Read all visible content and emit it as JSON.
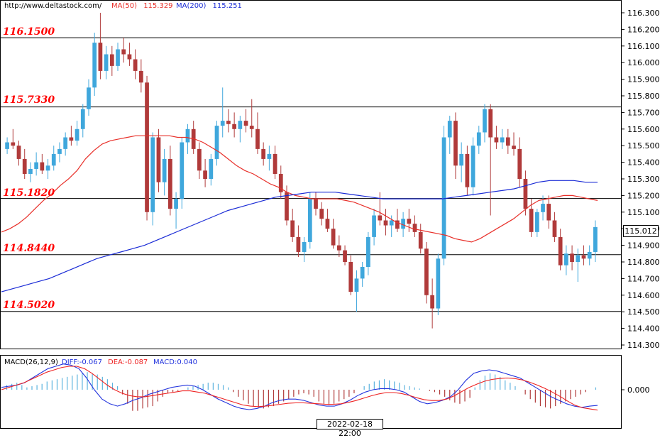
{
  "header": {
    "site": "http://www.deltastock.com/",
    "ma50_label": "MA(50)",
    "ma50_value": "115.329",
    "ma200_label": "MA(200)",
    "ma200_value": "115.251"
  },
  "macd_header": {
    "title": "MACD(26,12,9)",
    "diff": "DIFF:-0.067",
    "dea": "DEA:-0.087",
    "macd": "MACD:0.040"
  },
  "price_axis": {
    "ticks": [
      "116.300",
      "116.200",
      "116.100",
      "116.000",
      "115.900",
      "115.800",
      "115.700",
      "115.600",
      "115.500",
      "115.400",
      "115.300",
      "115.200",
      "115.100",
      "115.000",
      "114.900",
      "114.800",
      "114.700",
      "114.600",
      "114.500",
      "114.400",
      "114.300"
    ]
  },
  "macd_axis": {
    "zero_label": "0.000"
  },
  "current_price": "115.012",
  "time_label": "2022-02-18 22:00",
  "levels": [
    {
      "label": "116.1500",
      "value": 116.15
    },
    {
      "label": "115.7330",
      "value": 115.733
    },
    {
      "label": "115.1820",
      "value": 115.182
    },
    {
      "label": "114.8440",
      "value": 114.844
    },
    {
      "label": "114.5020",
      "value": 114.502
    }
  ],
  "colors": {
    "up": "#3fa7dc",
    "down": "#b03a3a",
    "ma50": "#e8302a",
    "ma200": "#1a2bd6",
    "level_text": "#ff0000",
    "macd_up": "#5bb3de",
    "macd_down": "#b03a3a",
    "diff": "#2233dd",
    "dea": "#ee2222"
  },
  "chart_data": {
    "type": "candlestick",
    "ylim": [
      114.25,
      116.33
    ],
    "candles": [
      [
        115.48,
        115.55,
        115.45,
        115.52
      ],
      [
        115.52,
        115.6,
        115.48,
        115.5
      ],
      [
        115.5,
        115.53,
        115.38,
        115.42
      ],
      [
        115.42,
        115.48,
        115.3,
        115.33
      ],
      [
        115.33,
        115.4,
        115.28,
        115.36
      ],
      [
        115.36,
        115.46,
        115.32,
        115.4
      ],
      [
        115.4,
        115.45,
        115.33,
        115.35
      ],
      [
        115.35,
        115.42,
        115.3,
        115.38
      ],
      [
        115.38,
        115.5,
        115.35,
        115.45
      ],
      [
        115.45,
        115.52,
        115.4,
        115.48
      ],
      [
        115.48,
        115.58,
        115.44,
        115.55
      ],
      [
        115.55,
        115.62,
        115.5,
        115.53
      ],
      [
        115.53,
        115.65,
        115.5,
        115.6
      ],
      [
        115.6,
        115.75,
        115.55,
        115.72
      ],
      [
        115.72,
        115.9,
        115.68,
        115.85
      ],
      [
        115.85,
        116.18,
        115.8,
        116.12
      ],
      [
        116.12,
        116.3,
        115.9,
        115.95
      ],
      [
        115.95,
        116.1,
        115.9,
        116.05
      ],
      [
        116.05,
        116.1,
        115.92,
        115.98
      ],
      [
        115.98,
        116.12,
        115.95,
        116.08
      ],
      [
        116.08,
        116.15,
        116.0,
        116.05
      ],
      [
        116.05,
        116.12,
        115.98,
        116.02
      ],
      [
        116.02,
        116.08,
        115.9,
        115.95
      ],
      [
        115.95,
        116.02,
        115.82,
        115.88
      ],
      [
        115.88,
        115.92,
        115.05,
        115.1
      ],
      [
        115.1,
        115.58,
        115.02,
        115.55
      ],
      [
        115.55,
        115.6,
        115.22,
        115.28
      ],
      [
        115.28,
        115.48,
        115.2,
        115.42
      ],
      [
        115.42,
        115.5,
        115.08,
        115.12
      ],
      [
        115.12,
        115.22,
        115.0,
        115.18
      ],
      [
        115.18,
        115.55,
        115.12,
        115.52
      ],
      [
        115.52,
        115.63,
        115.45,
        115.6
      ],
      [
        115.6,
        115.65,
        115.45,
        115.48
      ],
      [
        115.48,
        115.52,
        115.3,
        115.35
      ],
      [
        115.35,
        115.42,
        115.25,
        115.3
      ],
      [
        115.3,
        115.45,
        115.26,
        115.42
      ],
      [
        115.42,
        115.65,
        115.38,
        115.62
      ],
      [
        115.62,
        115.85,
        115.55,
        115.65
      ],
      [
        115.65,
        115.72,
        115.58,
        115.63
      ],
      [
        115.63,
        115.7,
        115.55,
        115.6
      ],
      [
        115.6,
        115.68,
        115.52,
        115.65
      ],
      [
        115.65,
        115.72,
        115.58,
        115.62
      ],
      [
        115.62,
        115.78,
        115.55,
        115.6
      ],
      [
        115.6,
        115.7,
        115.45,
        115.48
      ],
      [
        115.48,
        115.52,
        115.38,
        115.42
      ],
      [
        115.42,
        115.5,
        115.35,
        115.45
      ],
      [
        115.45,
        115.5,
        115.3,
        115.33
      ],
      [
        115.33,
        115.38,
        115.18,
        115.22
      ],
      [
        115.22,
        115.26,
        115.02,
        115.05
      ],
      [
        115.05,
        115.12,
        114.92,
        114.95
      ],
      [
        114.95,
        115.02,
        114.83,
        114.86
      ],
      [
        114.86,
        114.95,
        114.8,
        114.92
      ],
      [
        114.92,
        115.22,
        114.88,
        115.18
      ],
      [
        115.18,
        115.22,
        115.08,
        115.12
      ],
      [
        115.12,
        115.16,
        115.02,
        115.06
      ],
      [
        115.06,
        115.12,
        114.98,
        115.0
      ],
      [
        115.0,
        115.06,
        114.88,
        114.9
      ],
      [
        114.9,
        114.96,
        114.83,
        114.87
      ],
      [
        114.87,
        114.9,
        114.78,
        114.8
      ],
      [
        114.8,
        114.84,
        114.6,
        114.62
      ],
      [
        114.62,
        114.75,
        114.5,
        114.7
      ],
      [
        114.7,
        114.8,
        114.65,
        114.77
      ],
      [
        114.77,
        114.98,
        114.72,
        114.95
      ],
      [
        114.95,
        115.12,
        114.9,
        115.08
      ],
      [
        115.08,
        115.22,
        115.02,
        115.05
      ],
      [
        115.05,
        115.12,
        114.96,
        115.02
      ],
      [
        115.02,
        115.08,
        114.95,
        115.05
      ],
      [
        115.05,
        115.12,
        114.98,
        115.0
      ],
      [
        115.0,
        115.1,
        114.95,
        115.06
      ],
      [
        115.06,
        115.12,
        114.98,
        115.03
      ],
      [
        115.03,
        115.08,
        114.95,
        114.98
      ],
      [
        114.98,
        115.03,
        114.85,
        114.88
      ],
      [
        114.88,
        114.92,
        114.55,
        114.6
      ],
      [
        114.6,
        114.7,
        114.4,
        114.52
      ],
      [
        114.52,
        114.85,
        114.48,
        114.82
      ],
      [
        114.82,
        115.62,
        114.78,
        115.55
      ],
      [
        115.55,
        115.68,
        115.45,
        115.65
      ],
      [
        115.65,
        115.7,
        115.3,
        115.38
      ],
      [
        115.38,
        115.52,
        115.28,
        115.45
      ],
      [
        115.45,
        115.5,
        115.2,
        115.25
      ],
      [
        115.25,
        115.55,
        115.2,
        115.5
      ],
      [
        115.5,
        115.62,
        115.45,
        115.58
      ],
      [
        115.58,
        115.75,
        115.52,
        115.72
      ],
      [
        115.72,
        115.75,
        115.08,
        115.55
      ],
      [
        115.55,
        115.62,
        115.48,
        115.52
      ],
      [
        115.52,
        115.6,
        115.48,
        115.55
      ],
      [
        115.55,
        115.6,
        115.45,
        115.5
      ],
      [
        115.5,
        115.58,
        115.44,
        115.48
      ],
      [
        115.48,
        115.55,
        115.25,
        115.3
      ],
      [
        115.3,
        115.35,
        115.08,
        115.12
      ],
      [
        115.12,
        115.18,
        114.95,
        114.98
      ],
      [
        114.98,
        115.12,
        114.95,
        115.1
      ],
      [
        115.1,
        115.2,
        115.05,
        115.15
      ],
      [
        115.15,
        115.2,
        115.0,
        115.05
      ],
      [
        115.05,
        115.1,
        114.92,
        114.95
      ],
      [
        114.95,
        115.0,
        114.75,
        114.78
      ],
      [
        114.78,
        114.9,
        114.72,
        114.85
      ],
      [
        114.85,
        114.9,
        114.75,
        114.8
      ],
      [
        114.8,
        114.88,
        114.68,
        114.84
      ],
      [
        114.84,
        114.9,
        114.78,
        114.82
      ],
      [
        114.82,
        114.9,
        114.78,
        114.86
      ],
      [
        114.86,
        115.05,
        114.8,
        115.01
      ]
    ],
    "ma50": [
      114.98,
      115.0,
      115.03,
      115.07,
      115.12,
      115.17,
      115.21,
      115.26,
      115.3,
      115.35,
      115.42,
      115.47,
      115.51,
      115.53,
      115.54,
      115.55,
      115.56,
      115.56,
      115.56,
      115.56,
      115.56,
      115.55,
      115.55,
      115.54,
      115.52,
      115.49,
      115.46,
      115.42,
      115.38,
      115.35,
      115.33,
      115.3,
      115.27,
      115.25,
      115.22,
      115.2,
      115.19,
      115.18,
      115.18,
      115.18,
      115.18,
      115.17,
      115.16,
      115.14,
      115.12,
      115.1,
      115.07,
      115.04,
      115.02,
      115.0,
      114.99,
      114.98,
      114.97,
      114.96,
      114.94,
      114.93,
      114.92,
      114.94,
      114.97,
      115.0,
      115.03,
      115.06,
      115.1,
      115.14,
      115.17,
      115.18,
      115.19,
      115.2,
      115.2,
      115.19,
      115.18,
      115.17
    ],
    "ma200": [
      114.62,
      114.64,
      114.66,
      114.68,
      114.7,
      114.73,
      114.76,
      114.79,
      114.82,
      114.84,
      114.86,
      114.88,
      114.9,
      114.93,
      114.96,
      114.99,
      115.02,
      115.05,
      115.08,
      115.11,
      115.13,
      115.15,
      115.17,
      115.19,
      115.2,
      115.21,
      115.22,
      115.22,
      115.22,
      115.21,
      115.2,
      115.19,
      115.18,
      115.18,
      115.18,
      115.18,
      115.18,
      115.18,
      115.19,
      115.2,
      115.21,
      115.22,
      115.23,
      115.24,
      115.26,
      115.28,
      115.29,
      115.29,
      115.29,
      115.28,
      115.28
    ],
    "macd_hist": [
      0.02,
      0.025,
      0.03,
      0.02,
      0.01,
      0.015,
      0.02,
      0.025,
      0.035,
      0.04,
      0.045,
      0.05,
      0.055,
      0.06,
      0.065,
      0.07,
      0.075,
      0.07,
      0.065,
      0.055,
      0.045,
      0.03,
      0.015,
      -0.02,
      -0.06,
      -0.09,
      -0.09,
      -0.08,
      -0.075,
      -0.07,
      -0.05,
      -0.03,
      -0.015,
      -0.01,
      -0.005,
      0.0,
      0.01,
      0.015,
      0.02,
      0.025,
      0.03,
      0.03,
      0.025,
      0.02,
      0.01,
      -0.01,
      -0.03,
      -0.045,
      -0.06,
      -0.07,
      -0.075,
      -0.08,
      -0.075,
      -0.07,
      -0.06,
      -0.05,
      -0.04,
      -0.03,
      -0.02,
      -0.015,
      -0.02,
      -0.03,
      -0.05,
      -0.06,
      -0.065,
      -0.06,
      -0.05,
      -0.04,
      -0.03,
      -0.015,
      0.0,
      0.015,
      0.025,
      0.035,
      0.04,
      0.045,
      0.04,
      0.035,
      0.03,
      0.02,
      0.015,
      0.01,
      0.005,
      0.0,
      -0.005,
      -0.01,
      -0.02,
      -0.03,
      -0.045,
      -0.055,
      -0.06,
      -0.05,
      -0.035,
      0.01,
      0.04,
      0.06,
      0.07,
      0.065,
      0.055,
      0.04,
      0.03,
      0.015,
      0.0,
      -0.02,
      -0.04,
      -0.055,
      -0.07,
      -0.075,
      -0.08,
      -0.07,
      -0.06,
      -0.05,
      -0.04,
      -0.03,
      -0.02,
      -0.01,
      0.0,
      0.01
    ],
    "diff": [
      0.01,
      0.015,
      0.02,
      0.03,
      0.05,
      0.07,
      0.09,
      0.1,
      0.11,
      0.105,
      0.09,
      0.05,
      0.0,
      -0.04,
      -0.06,
      -0.07,
      -0.06,
      -0.045,
      -0.035,
      -0.02,
      -0.01,
      0.0,
      0.01,
      0.015,
      0.02,
      0.015,
      0.0,
      -0.02,
      -0.04,
      -0.055,
      -0.07,
      -0.08,
      -0.085,
      -0.08,
      -0.07,
      -0.055,
      -0.045,
      -0.04,
      -0.04,
      -0.045,
      -0.055,
      -0.065,
      -0.07,
      -0.07,
      -0.06,
      -0.045,
      -0.025,
      -0.01,
      0.0,
      0.005,
      0.005,
      0.0,
      -0.01,
      -0.03,
      -0.05,
      -0.06,
      -0.055,
      -0.045,
      -0.03,
      0.0,
      0.04,
      0.07,
      0.08,
      0.085,
      0.08,
      0.07,
      0.06,
      0.05,
      0.03,
      0.01,
      -0.01,
      -0.03,
      -0.045,
      -0.06,
      -0.07,
      -0.075,
      -0.07,
      -0.067
    ],
    "dea": [
      0.0,
      0.01,
      0.02,
      0.03,
      0.045,
      0.06,
      0.075,
      0.085,
      0.095,
      0.1,
      0.1,
      0.09,
      0.07,
      0.045,
      0.02,
      0.0,
      -0.015,
      -0.025,
      -0.03,
      -0.03,
      -0.025,
      -0.02,
      -0.015,
      -0.01,
      -0.005,
      -0.005,
      -0.01,
      -0.015,
      -0.025,
      -0.035,
      -0.045,
      -0.055,
      -0.065,
      -0.07,
      -0.072,
      -0.07,
      -0.066,
      -0.062,
      -0.058,
      -0.056,
      -0.056,
      -0.058,
      -0.06,
      -0.062,
      -0.062,
      -0.06,
      -0.054,
      -0.046,
      -0.036,
      -0.026,
      -0.018,
      -0.012,
      -0.012,
      -0.016,
      -0.024,
      -0.034,
      -0.042,
      -0.046,
      -0.046,
      -0.04,
      -0.026,
      -0.008,
      0.01,
      0.024,
      0.036,
      0.044,
      0.048,
      0.05,
      0.048,
      0.042,
      0.032,
      0.02,
      0.006,
      -0.01,
      -0.028,
      -0.048,
      -0.066,
      -0.077,
      -0.082,
      -0.087
    ]
  }
}
